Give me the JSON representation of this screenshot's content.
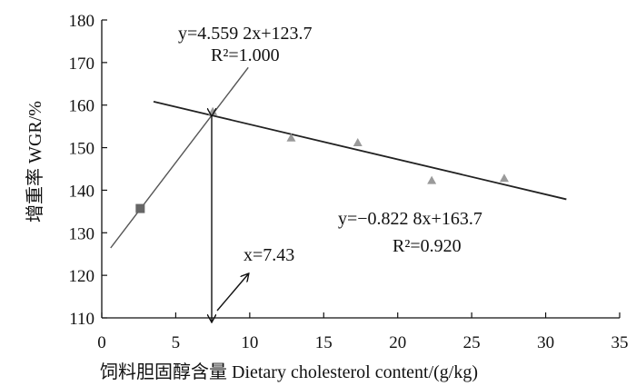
{
  "chart_data": {
    "type": "scatter",
    "xlabel": "饲料胆固醇含量 Dietary cholesterol content/(g/kg)",
    "ylabel": "增重率 WGR/%",
    "xlim": [
      0,
      35
    ],
    "ylim": [
      110,
      180
    ],
    "x_ticks": [
      "0",
      "5",
      "10",
      "15",
      "20",
      "25",
      "30",
      "35"
    ],
    "y_ticks": [
      "110",
      "120",
      "130",
      "140",
      "150",
      "160",
      "170",
      "180"
    ],
    "grid": false,
    "series": [
      {
        "points": [
          {
            "x": 2.6,
            "y": 135.7,
            "marker": "square"
          },
          {
            "x": 7.5,
            "y": 158.5,
            "marker": "triangle"
          },
          {
            "x": 12.8,
            "y": 152.3,
            "marker": "triangle"
          },
          {
            "x": 17.3,
            "y": 151.2,
            "marker": "triangle"
          },
          {
            "x": 22.3,
            "y": 142.3,
            "marker": "triangle"
          },
          {
            "x": 27.2,
            "y": 142.8,
            "marker": "triangle"
          }
        ]
      }
    ],
    "fit_lines": [
      {
        "slope": 4.5592,
        "intercept": 123.7,
        "x_range": [
          0.6,
          9.9
        ],
        "equation": "y=4.559 2x+123.7",
        "r2_label": "R²=1.000"
      },
      {
        "slope": -0.8228,
        "intercept": 163.7,
        "x_range": [
          3.5,
          31.4
        ],
        "equation": "y=−0.822 8x+163.7",
        "r2_label": "R²=0.920"
      }
    ],
    "breakpoint": {
      "x": 7.43,
      "label": "x=7.43"
    },
    "colors": {
      "axis": "#111111",
      "line": "#555555",
      "marker": "#9a9a9a",
      "square": "#666666"
    }
  }
}
